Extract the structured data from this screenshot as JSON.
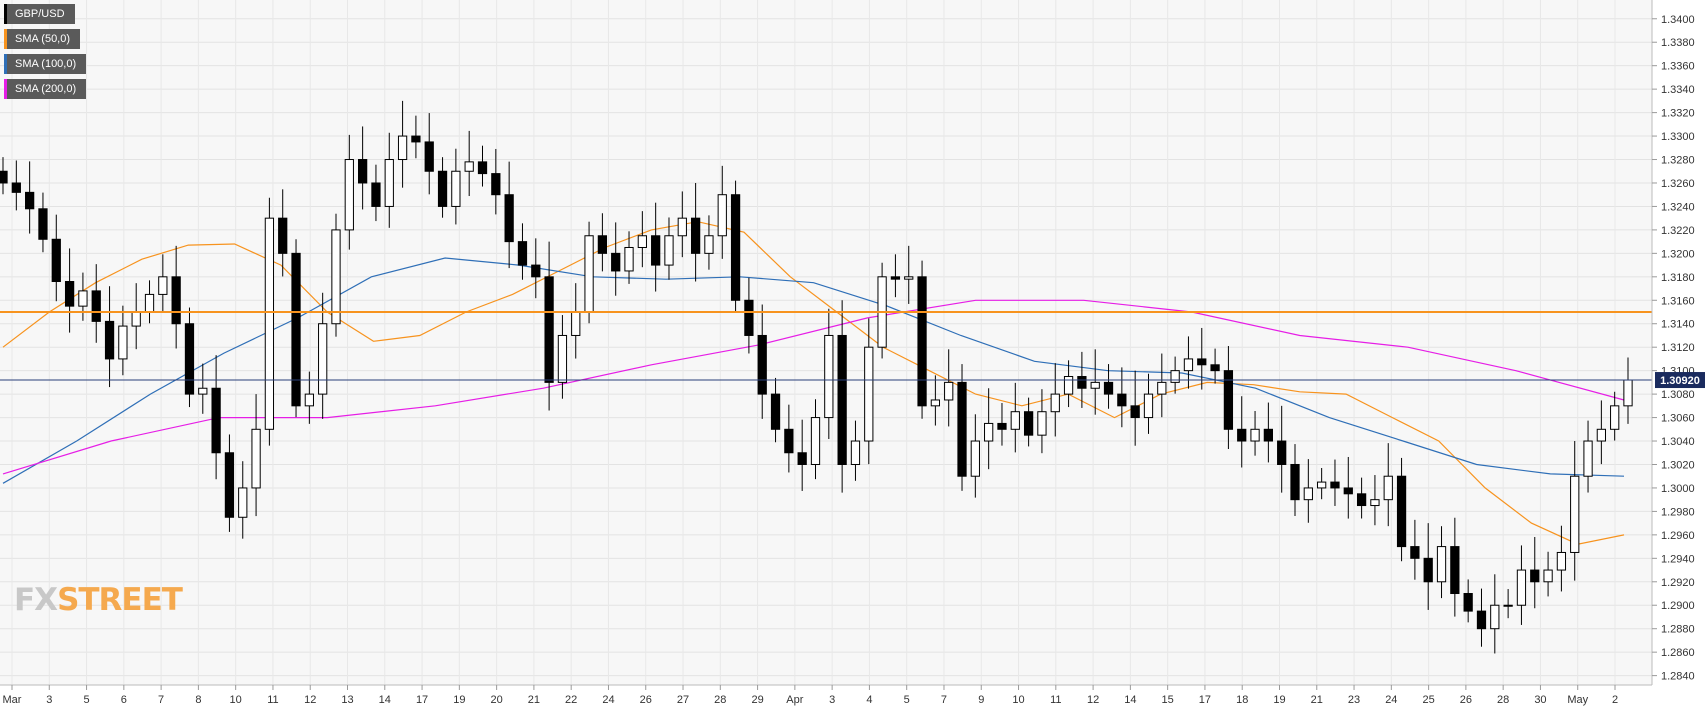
{
  "chart_data": {
    "type": "candlestick",
    "symbol": "GBP/USD",
    "price_label": "1.30920",
    "price": 1.3092,
    "horizontal_level": 1.315,
    "ylim": [
      1.2832,
      1.3416
    ],
    "y_ticks": [
      "1.2840",
      "1.2860",
      "1.2880",
      "1.2900",
      "1.2920",
      "1.2940",
      "1.2960",
      "1.2980",
      "1.3000",
      "1.3020",
      "1.3040",
      "1.3060",
      "1.3080",
      "1.3100",
      "1.3120",
      "1.3140",
      "1.3160",
      "1.3180",
      "1.3200",
      "1.3220",
      "1.3240",
      "1.3260",
      "1.3280",
      "1.3300",
      "1.3320",
      "1.3340",
      "1.3360",
      "1.3380",
      "1.3400"
    ],
    "x_ticks": [
      "Mar",
      "3",
      "5",
      "6",
      "7",
      "8",
      "10",
      "11",
      "12",
      "13",
      "14",
      "17",
      "19",
      "20",
      "21",
      "22",
      "24",
      "26",
      "27",
      "28",
      "29",
      "Apr",
      "3",
      "4",
      "5",
      "7",
      "9",
      "10",
      "11",
      "12",
      "14",
      "15",
      "17",
      "18",
      "19",
      "21",
      "23",
      "24",
      "25",
      "26",
      "28",
      "30",
      "May",
      "2"
    ],
    "grid": true,
    "legend": [
      {
        "name": "GBP/USD",
        "color": "#000000"
      },
      {
        "name": "SMA (50,0)",
        "color": "#f7931e"
      },
      {
        "name": "SMA (100,0)",
        "color": "#2f6fb7"
      },
      {
        "name": "SMA (200,0)",
        "color": "#e61ee6"
      }
    ],
    "closes": [
      1.326,
      1.3252,
      1.3238,
      1.3212,
      1.3176,
      1.3155,
      1.3168,
      1.3142,
      1.311,
      1.3138,
      1.315,
      1.3165,
      1.318,
      1.314,
      1.308,
      1.3085,
      1.303,
      1.2975,
      1.3,
      1.305,
      1.323,
      1.32,
      1.307,
      1.308,
      1.314,
      1.322,
      1.328,
      1.326,
      1.324,
      1.328,
      1.33,
      1.3295,
      1.327,
      1.324,
      1.327,
      1.3278,
      1.3268,
      1.325,
      1.321,
      1.319,
      1.318,
      1.309,
      1.313,
      1.315,
      1.3215,
      1.32,
      1.3185,
      1.3205,
      1.3215,
      1.319,
      1.3215,
      1.323,
      1.32,
      1.3215,
      1.325,
      1.316,
      1.313,
      1.308,
      1.305,
      1.303,
      1.302,
      1.306,
      1.313,
      1.302,
      1.304,
      1.312,
      1.318,
      1.3178,
      1.318,
      1.307,
      1.3075,
      1.309,
      1.301,
      1.304,
      1.3055,
      1.305,
      1.3065,
      1.3045,
      1.3065,
      1.308,
      1.3095,
      1.3085,
      1.309,
      1.308,
      1.307,
      1.306,
      1.308,
      1.309,
      1.31,
      1.311,
      1.3105,
      1.31,
      1.305,
      1.304,
      1.305,
      1.304,
      1.302,
      1.299,
      1.3,
      1.3005,
      1.3,
      1.2995,
      1.2985,
      1.299,
      1.301,
      1.295,
      1.294,
      1.292,
      1.295,
      1.291,
      1.2895,
      1.288,
      1.29,
      1.29,
      1.293,
      1.292,
      1.293,
      1.2945,
      1.301,
      1.304,
      1.305,
      1.307,
      1.3092
    ],
    "series": [
      {
        "name": "SMA (50,0)",
        "values": [
          1.312,
          1.315,
          1.3175,
          1.3195,
          1.3207,
          1.3208,
          1.319,
          1.315,
          1.3125,
          1.313,
          1.315,
          1.3165,
          1.3185,
          1.3205,
          1.322,
          1.3227,
          1.3218,
          1.318,
          1.315,
          1.312,
          1.31,
          1.308,
          1.307,
          1.308,
          1.306,
          1.308,
          1.309,
          1.3088,
          1.3082,
          1.308,
          1.306,
          1.304,
          1.3,
          1.297,
          1.2952,
          1.296
        ]
      },
      {
        "name": "SMA (100,0)",
        "values": [
          1.3004,
          1.304,
          1.308,
          1.3115,
          1.3145,
          1.318,
          1.3196,
          1.319,
          1.318,
          1.3178,
          1.318,
          1.3175,
          1.3155,
          1.313,
          1.3108,
          1.31,
          1.3098,
          1.3085,
          1.306,
          1.304,
          1.302,
          1.3012,
          1.301
        ]
      },
      {
        "name": "SMA (200,0)",
        "values": [
          1.3012,
          1.304,
          1.306,
          1.306,
          1.307,
          1.3085,
          1.3105,
          1.3122,
          1.3145,
          1.316,
          1.316,
          1.315,
          1.313,
          1.312,
          1.31,
          1.3075
        ]
      }
    ]
  },
  "logo": {
    "part1": "FX",
    "part2": "STREET"
  }
}
